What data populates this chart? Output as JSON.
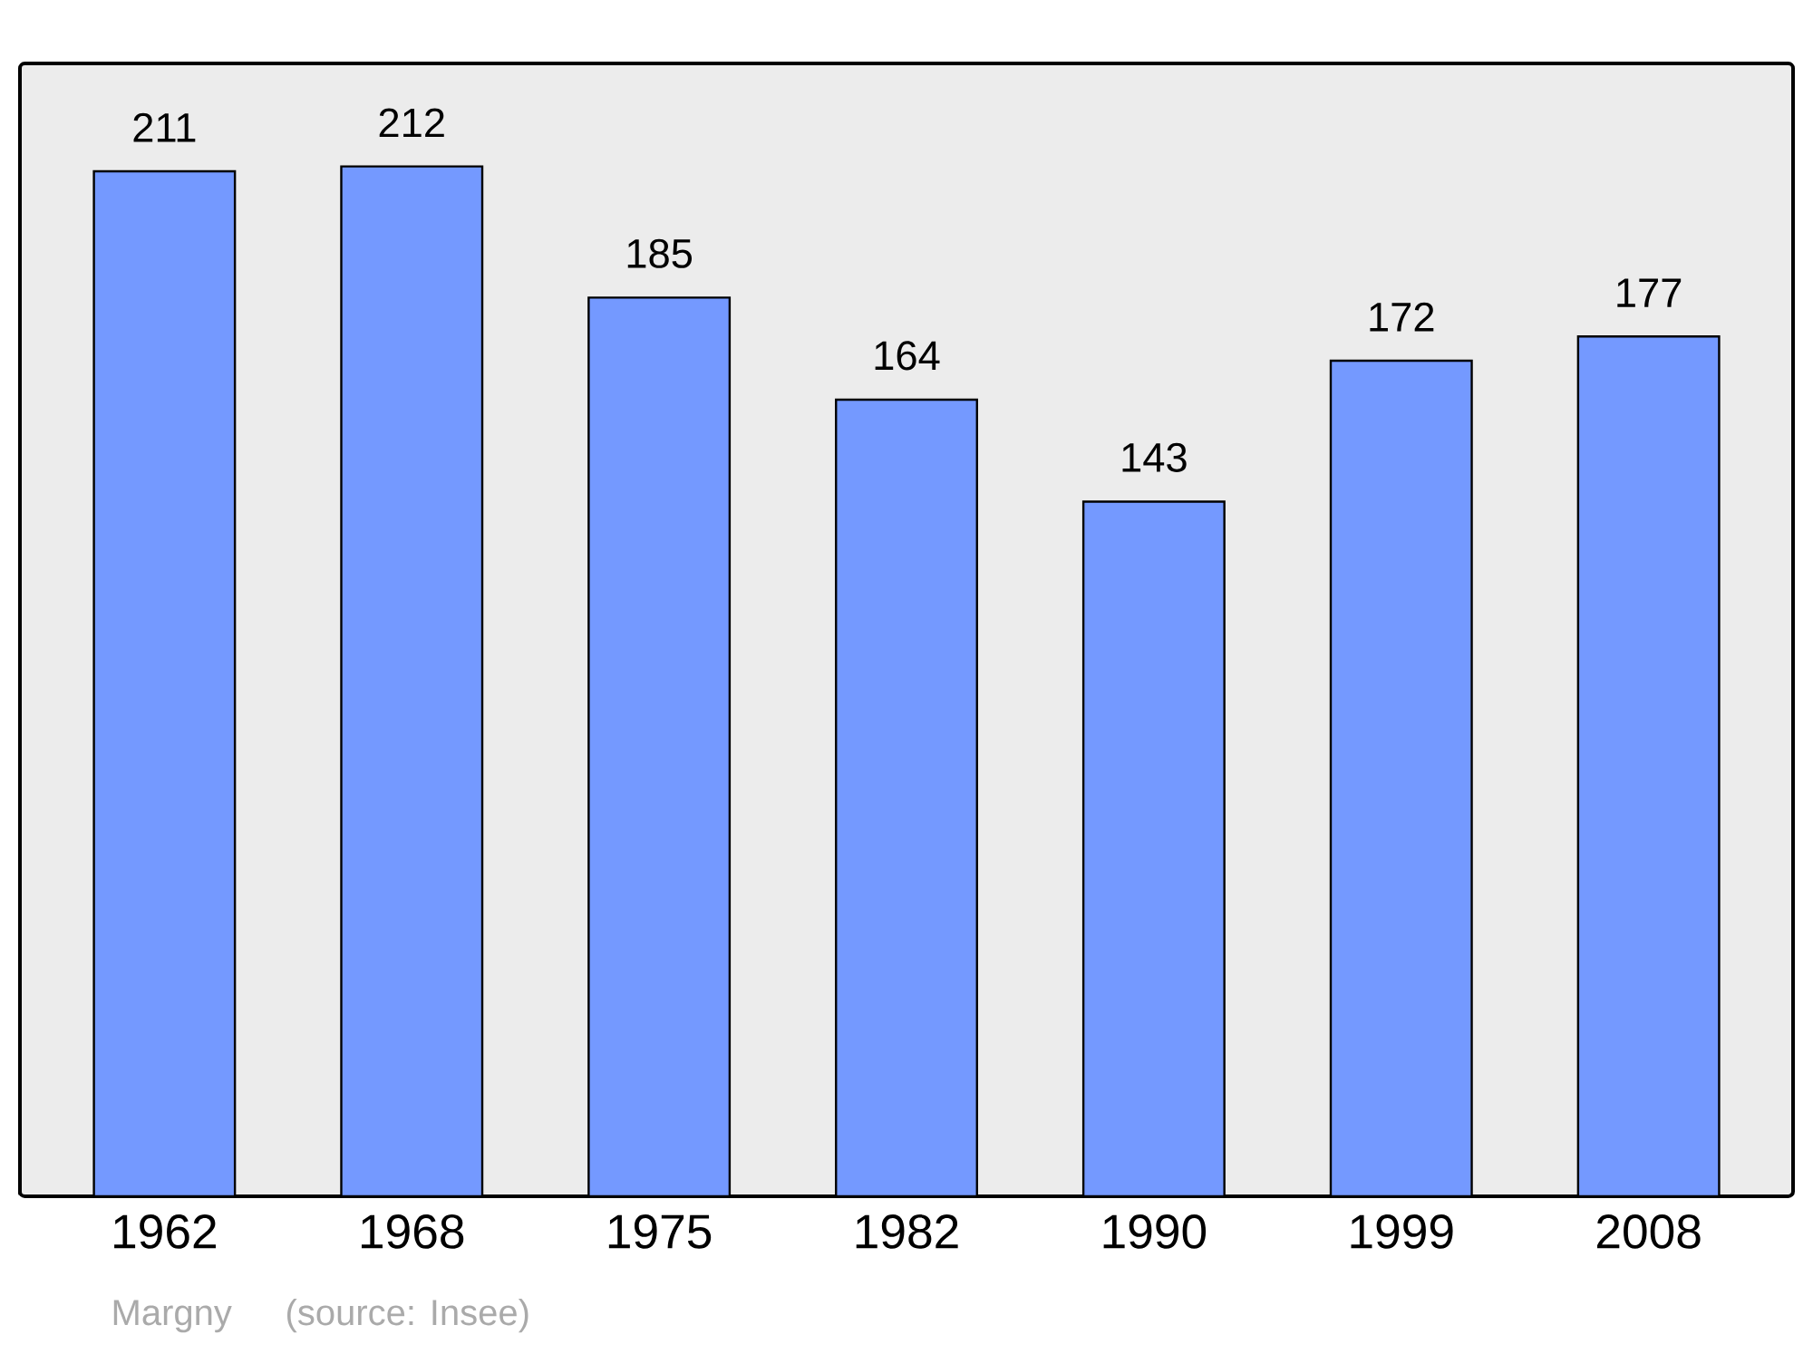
{
  "chart_data": {
    "type": "bar",
    "categories": [
      "1962",
      "1968",
      "1975",
      "1982",
      "1990",
      "1999",
      "2008"
    ],
    "values": [
      211,
      212,
      185,
      164,
      143,
      172,
      177
    ],
    "color": "#7499ff",
    "data_labels": true,
    "grid": false,
    "annotations": [
      "Margny",
      "(source: Insee)"
    ]
  }
}
